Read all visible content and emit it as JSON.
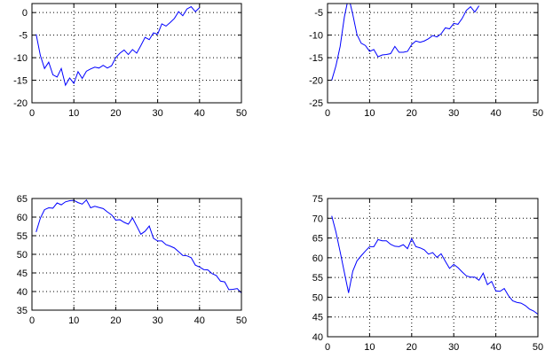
{
  "chart_data": [
    {
      "type": "line",
      "title": "",
      "xlabel": "",
      "ylabel": "",
      "xlim": [
        0,
        50
      ],
      "ylim": [
        -20,
        2
      ],
      "xticks": [
        0,
        10,
        20,
        30,
        40,
        50
      ],
      "yticks": [
        -20,
        -15,
        -10,
        -5,
        0
      ],
      "grid": true,
      "series": [
        {
          "color": "#0000ff",
          "x": [
            1,
            2,
            3,
            4,
            5,
            6,
            7,
            8,
            9,
            10,
            11,
            12,
            13,
            14,
            15,
            16,
            17,
            18,
            19,
            20,
            21,
            22,
            23,
            24,
            25,
            26,
            27,
            28,
            29,
            30,
            31,
            32,
            33,
            34,
            35,
            36,
            37,
            38,
            39,
            40
          ],
          "y": [
            -4.8,
            -9.5,
            -12.4,
            -11.0,
            -13.8,
            -14.3,
            -12.4,
            -16.1,
            -14.5,
            -15.7,
            -13.1,
            -14.6,
            -13.0,
            -12.5,
            -12.1,
            -12.3,
            -11.7,
            -12.3,
            -11.8,
            -10.0,
            -9.0,
            -8.3,
            -9.3,
            -8.2,
            -9.0,
            -7.3,
            -5.5,
            -6.0,
            -4.5,
            -4.8,
            -2.5,
            -3.0,
            -2.2,
            -1.3,
            0.2,
            -0.7,
            0.8,
            1.3,
            0.2,
            1.1
          ]
        }
      ]
    },
    {
      "type": "line",
      "title": "",
      "xlabel": "",
      "ylabel": "",
      "xlim": [
        0,
        50
      ],
      "ylim": [
        -25,
        -3
      ],
      "xticks": [
        0,
        10,
        20,
        30,
        40,
        50
      ],
      "yticks": [
        -25,
        -20,
        -15,
        -10,
        -5
      ],
      "grid": true,
      "series": [
        {
          "color": "#0000ff",
          "x": [
            1,
            2,
            3,
            4,
            5,
            6,
            7,
            8,
            9,
            10,
            11,
            12,
            13,
            14,
            15,
            16,
            17,
            18,
            19,
            20,
            21,
            22,
            23,
            24,
            25,
            26,
            27,
            28,
            29,
            30,
            31,
            32,
            33,
            34,
            35,
            36
          ],
          "y": [
            -20.0,
            -16.8,
            -12.5,
            -6.0,
            -1.5,
            -5.4,
            -9.9,
            -11.8,
            -12.3,
            -13.6,
            -13.2,
            -14.8,
            -14.4,
            -14.3,
            -14.1,
            -12.5,
            -13.8,
            -13.8,
            -13.6,
            -12.1,
            -11.3,
            -11.6,
            -11.3,
            -10.8,
            -10.1,
            -10.4,
            -9.7,
            -8.4,
            -8.6,
            -7.4,
            -7.6,
            -6.3,
            -4.5,
            -3.7,
            -4.9,
            -3.5
          ]
        }
      ]
    },
    {
      "type": "line",
      "title": "",
      "xlabel": "",
      "ylabel": "",
      "xlim": [
        0,
        50
      ],
      "ylim": [
        35,
        65
      ],
      "xticks": [
        0,
        10,
        20,
        30,
        40,
        50
      ],
      "yticks": [
        35,
        40,
        45,
        50,
        55,
        60,
        65
      ],
      "grid": true,
      "series": [
        {
          "color": "#0000ff",
          "x": [
            1,
            2,
            3,
            4,
            5,
            6,
            7,
            8,
            9,
            10,
            11,
            12,
            13,
            14,
            15,
            16,
            17,
            18,
            19,
            20,
            21,
            22,
            23,
            24,
            25,
            26,
            27,
            28,
            29,
            30,
            31,
            32,
            33,
            34,
            35,
            36,
            37,
            38,
            39,
            40,
            41,
            42,
            43,
            44,
            45,
            46,
            47,
            48,
            49,
            50
          ],
          "y": [
            56.0,
            59.7,
            62.0,
            62.5,
            62.4,
            63.8,
            63.3,
            64.1,
            64.4,
            64.5,
            63.9,
            63.5,
            64.6,
            62.5,
            62.9,
            62.6,
            62.3,
            61.4,
            60.6,
            59.2,
            59.3,
            58.6,
            58.1,
            59.8,
            57.6,
            55.4,
            56.2,
            57.6,
            54.3,
            53.6,
            53.6,
            52.6,
            52.2,
            51.7,
            50.7,
            49.7,
            49.6,
            49.1,
            47.1,
            46.6,
            45.9,
            45.8,
            44.8,
            44.3,
            42.8,
            42.6,
            40.5,
            40.6,
            40.8,
            39.6
          ]
        }
      ]
    },
    {
      "type": "line",
      "title": "",
      "xlabel": "",
      "ylabel": "",
      "xlim": [
        0,
        50
      ],
      "ylim": [
        40,
        75
      ],
      "xticks": [
        0,
        10,
        20,
        30,
        40,
        50
      ],
      "yticks": [
        40,
        45,
        50,
        55,
        60,
        65,
        70,
        75
      ],
      "grid": true,
      "series": [
        {
          "color": "#0000ff",
          "x": [
            1,
            2,
            3,
            4,
            5,
            6,
            7,
            8,
            9,
            10,
            11,
            12,
            13,
            14,
            15,
            16,
            17,
            18,
            19,
            20,
            21,
            22,
            23,
            24,
            25,
            26,
            27,
            28,
            29,
            30,
            31,
            32,
            33,
            34,
            35,
            36,
            37,
            38,
            39,
            40,
            41,
            42,
            43,
            44,
            45,
            46,
            47,
            48,
            49,
            50
          ],
          "y": [
            70.6,
            66.5,
            61.5,
            56.3,
            51.1,
            56.6,
            59.2,
            60.5,
            61.7,
            62.8,
            62.8,
            64.6,
            64.3,
            64.3,
            63.4,
            62.9,
            62.8,
            63.3,
            62.3,
            64.8,
            62.8,
            62.5,
            62.0,
            60.9,
            61.3,
            60.1,
            61.0,
            59.1,
            57.3,
            58.3,
            57.5,
            56.4,
            55.4,
            55.1,
            55.1,
            54.3,
            56.1,
            53.2,
            54.0,
            51.6,
            51.5,
            52.2,
            50.4,
            49.1,
            48.7,
            48.5,
            47.9,
            47.0,
            46.5,
            45.7
          ]
        }
      ]
    }
  ]
}
